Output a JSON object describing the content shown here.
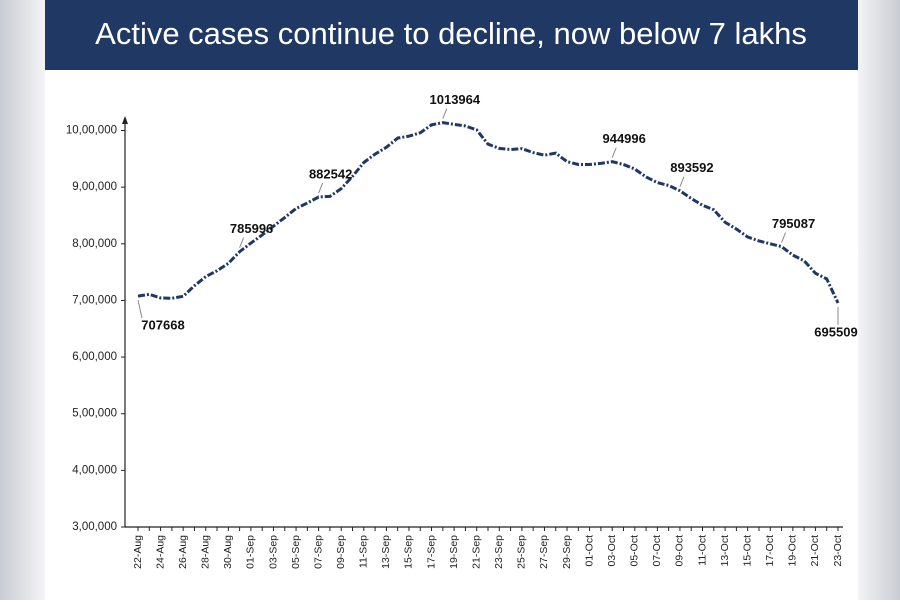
{
  "chart_data": {
    "type": "line",
    "title": "Active cases continue to decline, now below 7 lakhs",
    "categories": [
      "22-Aug",
      null,
      "24-Aug",
      null,
      "26-Aug",
      null,
      "28-Aug",
      null,
      "30-Aug",
      null,
      "01-Sep",
      null,
      "03-Sep",
      null,
      "05-Sep",
      null,
      "07-Sep",
      null,
      "09-Sep",
      null,
      "11-Sep",
      null,
      "13-Sep",
      null,
      "15-Sep",
      null,
      "17-Sep",
      null,
      "19-Sep",
      null,
      "21-Sep",
      null,
      "23-Sep",
      null,
      "25-Sep",
      null,
      "27-Sep",
      null,
      "29-Sep",
      null,
      "01-Oct",
      null,
      "03-Oct",
      null,
      "05-Oct",
      null,
      "07-Oct",
      null,
      "09-Oct",
      null,
      "11-Oct",
      null,
      "13-Oct",
      null,
      "15-Oct",
      null,
      "17-Oct",
      null,
      "19-Oct",
      null,
      "21-Oct",
      null,
      "23-Oct"
    ],
    "series": [
      {
        "color": "#1f3864",
        "values": [
          707668,
          710771,
          704348,
          703801,
          707267,
          725991,
          742023,
          752424,
          765302,
          785996,
          801282,
          815538,
          831124,
          846395,
          862320,
          872000,
          882542,
          883697,
          897394,
          919018,
          943480,
          958316,
          970338,
          986598,
          990000,
          995933,
          1009976,
          1013964,
          1010824,
          1008000,
          1001000,
          975861,
          968377,
          966382,
          968000,
          960969,
          956402,
          960000,
          945000,
          940000,
          940000,
          942000,
          944996,
          940000,
          932000,
          918000,
          908000,
          903000,
          893592,
          880000,
          868000,
          860000,
          838000,
          826000,
          812000,
          805000,
          800000,
          795087,
          780000,
          770000,
          748000,
          738000,
          695509
        ],
        "value_labels": [
          "707668",
          null,
          null,
          null,
          null,
          null,
          null,
          null,
          null,
          "785996",
          null,
          null,
          null,
          null,
          null,
          null,
          "882542",
          null,
          null,
          null,
          null,
          null,
          null,
          null,
          null,
          null,
          null,
          "1013964",
          null,
          null,
          null,
          null,
          null,
          null,
          null,
          null,
          null,
          null,
          null,
          null,
          null,
          null,
          "944996",
          null,
          null,
          null,
          null,
          null,
          "893592",
          null,
          null,
          null,
          null,
          null,
          null,
          null,
          null,
          "795087",
          null,
          null,
          null,
          null,
          "695509"
        ]
      }
    ],
    "ylim": [
      300000,
      1015000
    ],
    "yticks": [
      {
        "value": 300000,
        "label": "3,00,000"
      },
      {
        "value": 400000,
        "label": "4,00,000"
      },
      {
        "value": 500000,
        "label": "5,00,000"
      },
      {
        "value": 600000,
        "label": "6,00,000"
      },
      {
        "value": 700000,
        "label": "7,00,000"
      },
      {
        "value": 800000,
        "label": "8,00,000"
      },
      {
        "value": 900000,
        "label": "9,00,000"
      },
      {
        "value": 1000000,
        "label": "10,00,000"
      }
    ],
    "grid": false
  }
}
